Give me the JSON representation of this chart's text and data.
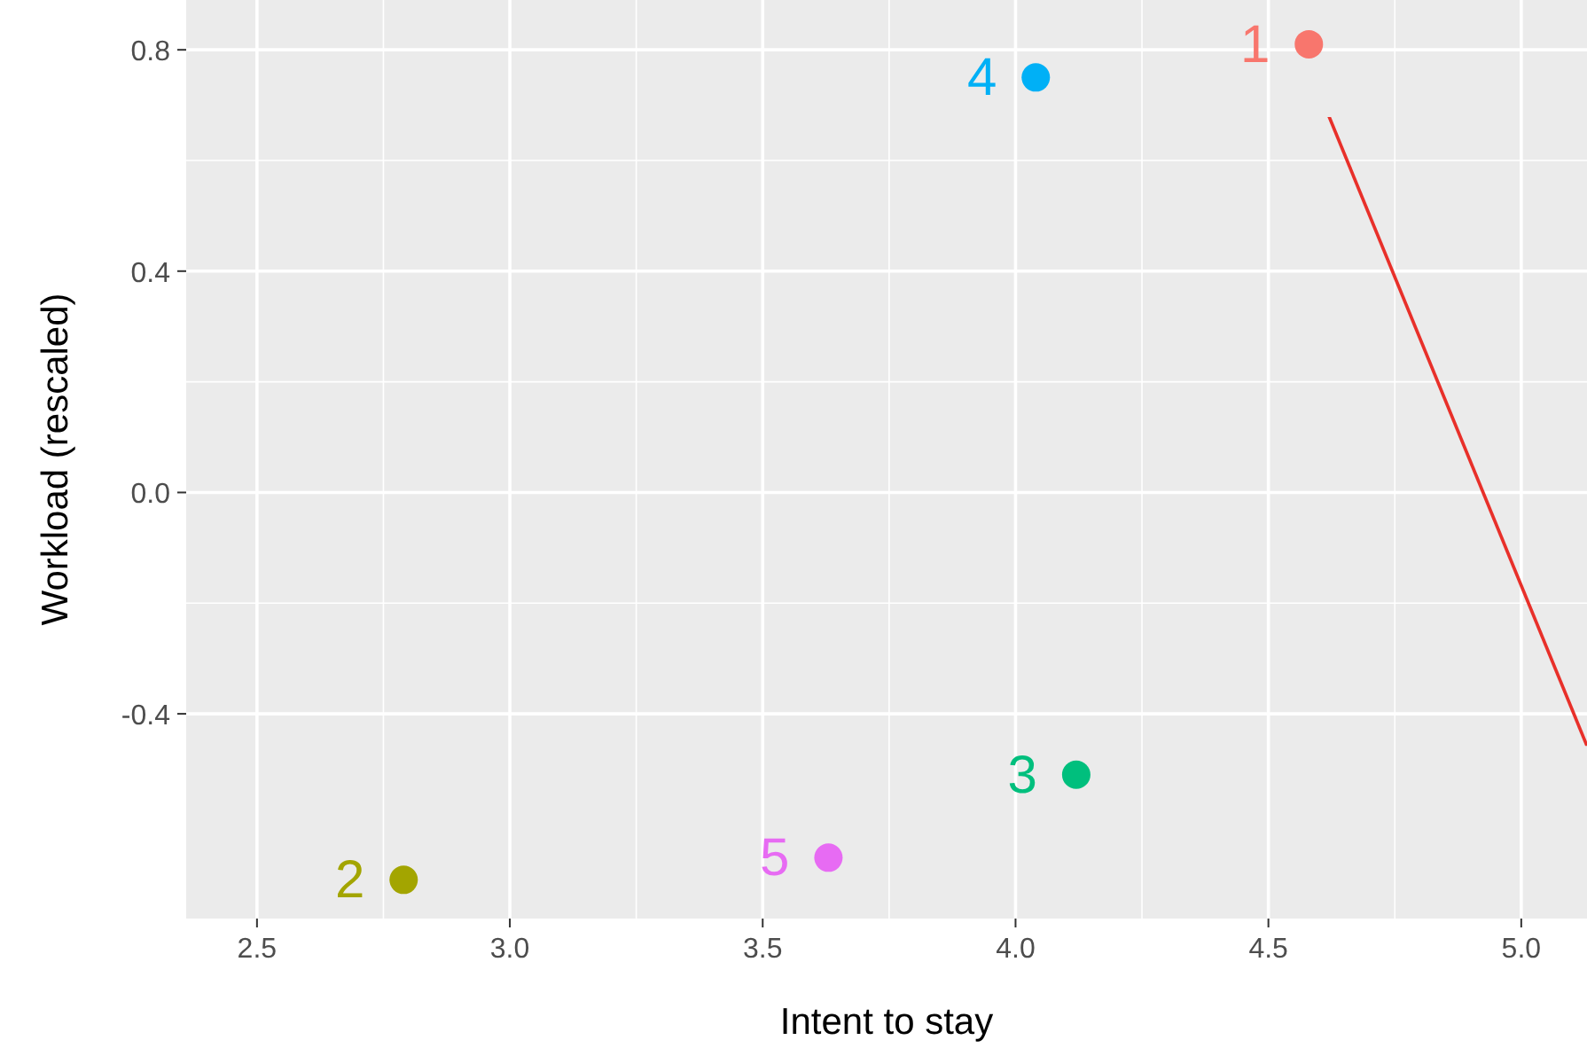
{
  "chart_data": {
    "type": "scatter",
    "xlabel": "Intent to stay",
    "ylabel": "Workload (rescaled)",
    "xlim": [
      2.36,
      5.13
    ],
    "ylim": [
      -0.77,
      0.89
    ],
    "xticks": [
      2.5,
      {
        "value": 3,
        "label": "3.0"
      },
      3.5,
      {
        "value": 4,
        "label": "4.0"
      },
      4.5,
      {
        "value": 5,
        "label": "5.0"
      }
    ],
    "yticks": [
      -0.4,
      {
        "value": 0,
        "label": "0.0"
      },
      0.4,
      0.8
    ],
    "grid": true,
    "marker": "circle",
    "series": [
      {
        "name": "1",
        "color": "#f8766d",
        "x": [
          4.58
        ],
        "values": [
          0.81
        ]
      },
      {
        "name": "2",
        "color": "#a3a500",
        "x": [
          2.79
        ],
        "values": [
          -0.7
        ]
      },
      {
        "name": "3",
        "color": "#00bf7d",
        "x": [
          4.12
        ],
        "values": [
          -0.51
        ]
      },
      {
        "name": "4",
        "color": "#00b0f6",
        "x": [
          4.04
        ],
        "values": [
          0.75
        ]
      },
      {
        "name": "5",
        "color": "#e76bf3",
        "x": [
          3.63
        ],
        "values": [
          -0.66
        ]
      }
    ]
  }
}
